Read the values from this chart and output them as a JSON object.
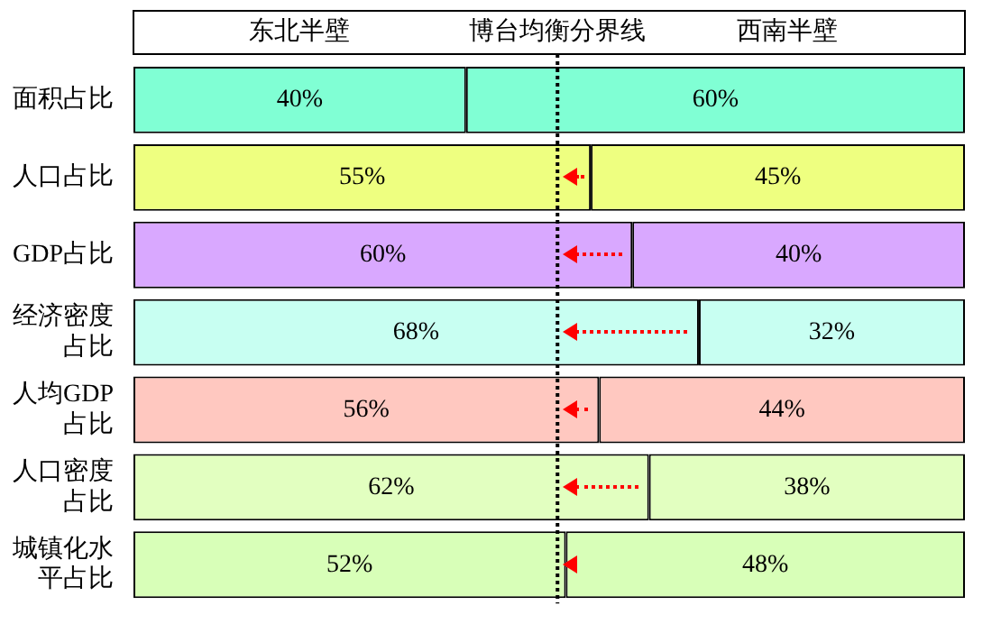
{
  "chart_data": {
    "type": "bar",
    "orientation": "horizontal",
    "stacked": true,
    "categories": [
      "面积占比",
      "人口占比",
      "GDP占比",
      "经济密度占比",
      "人均GDP占比",
      "人口密度占比",
      "城镇化水平占比"
    ],
    "series": [
      {
        "name": "东北半壁",
        "colors": [
          "#80ffd4",
          "#eeff80",
          "#d9a8ff",
          "#c8fff2",
          "#ffc8c0",
          "#e2ffc0",
          "#d8ffb8"
        ],
        "values": [
          40,
          55,
          60,
          68,
          56,
          62,
          52
        ],
        "value_labels": [
          "40%",
          "55%",
          "60%",
          "68%",
          "56%",
          "62%",
          "52%"
        ]
      },
      {
        "name": "西南半壁",
        "colors": [
          "#80ffd4",
          "#eeff80",
          "#d9a8ff",
          "#c8fff2",
          "#ffc8c0",
          "#e2ffc0",
          "#d8ffb8"
        ],
        "values": [
          60,
          45,
          40,
          32,
          44,
          38,
          48
        ],
        "value_labels": [
          "60%",
          "45%",
          "40%",
          "32%",
          "44%",
          "38%",
          "48%"
        ]
      }
    ],
    "tick_labels": "y",
    "legend": "top",
    "ref_lines": [
      {
        "axis": "x",
        "value": 51,
        "label": "博台均衡分界线",
        "color": "#000000",
        "line_style": "dotted"
      }
    ]
  }
}
